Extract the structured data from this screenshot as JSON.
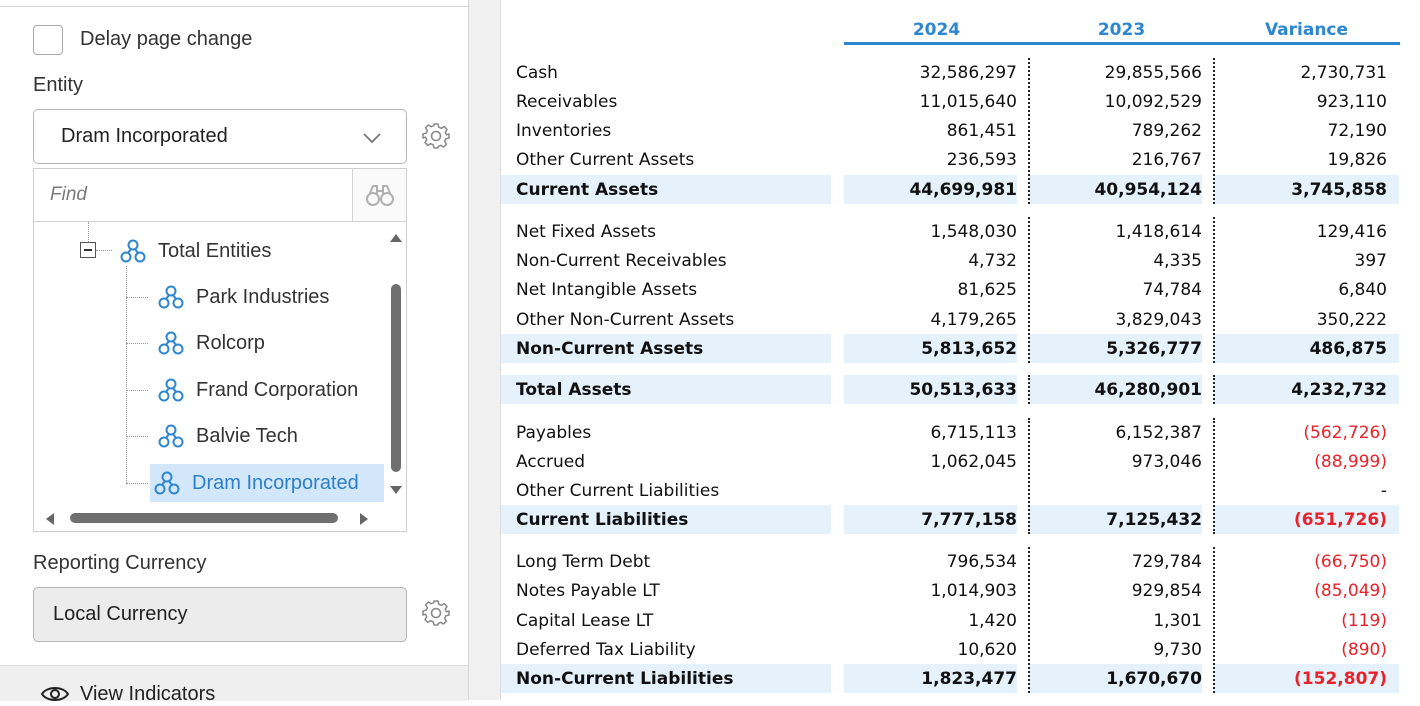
{
  "left_panel": {
    "delay_label": "Delay page change",
    "entity_label": "Entity",
    "entity_value": "Dram Incorporated",
    "find_placeholder": "Find",
    "tree": {
      "root": "Total Entities",
      "children": [
        "Park Industries",
        "Rolcorp",
        "Frand Corporation",
        "Balvie Tech",
        "Dram Incorporated"
      ],
      "selected": "Dram Incorporated"
    },
    "currency_label": "Reporting Currency",
    "currency_value": "Local Currency",
    "view_indicators_label": "View Indicators"
  },
  "report": {
    "headers": [
      "2024",
      "2023",
      "Variance"
    ],
    "accent_color": "#2e86d0",
    "negative_color": "#e8222a",
    "subtotal_bg": "#e5f1fb",
    "rows": [
      {
        "label": "Cash",
        "v2024": "32,586,297",
        "v2023": "29,855,566",
        "var": "2,730,731",
        "neg": false,
        "sub": false
      },
      {
        "label": "Receivables",
        "v2024": "11,015,640",
        "v2023": "10,092,529",
        "var": "923,110",
        "neg": false,
        "sub": false
      },
      {
        "label": "Inventories",
        "v2024": "861,451",
        "v2023": "789,262",
        "var": "72,190",
        "neg": false,
        "sub": false
      },
      {
        "label": "Other Current Assets",
        "v2024": "236,593",
        "v2023": "216,767",
        "var": "19,826",
        "neg": false,
        "sub": false
      },
      {
        "label": "Current Assets",
        "v2024": "44,699,981",
        "v2023": "40,954,124",
        "var": "3,745,858",
        "neg": false,
        "sub": true
      },
      {
        "label": "Net Fixed Assets",
        "v2024": "1,548,030",
        "v2023": "1,418,614",
        "var": "129,416",
        "neg": false,
        "sub": false
      },
      {
        "label": "Non-Current Receivables",
        "v2024": "4,732",
        "v2023": "4,335",
        "var": "397",
        "neg": false,
        "sub": false
      },
      {
        "label": "Net Intangible Assets",
        "v2024": "81,625",
        "v2023": "74,784",
        "var": "6,840",
        "neg": false,
        "sub": false
      },
      {
        "label": "Other Non-Current Assets",
        "v2024": "4,179,265",
        "v2023": "3,829,043",
        "var": "350,222",
        "neg": false,
        "sub": false
      },
      {
        "label": "Non-Current Assets",
        "v2024": "5,813,652",
        "v2023": "5,326,777",
        "var": "486,875",
        "neg": false,
        "sub": true
      },
      {
        "label": "Total Assets",
        "v2024": "50,513,633",
        "v2023": "46,280,901",
        "var": "4,232,732",
        "neg": false,
        "sub": true
      },
      {
        "label": "Payables",
        "v2024": "6,715,113",
        "v2023": "6,152,387",
        "var": "(562,726)",
        "neg": true,
        "sub": false
      },
      {
        "label": "Accrued",
        "v2024": "1,062,045",
        "v2023": "973,046",
        "var": "(88,999)",
        "neg": true,
        "sub": false
      },
      {
        "label": "Other Current Liabilities",
        "v2024": "",
        "v2023": "",
        "var": "-",
        "neg": false,
        "sub": false
      },
      {
        "label": "Current Liabilities",
        "v2024": "7,777,158",
        "v2023": "7,125,432",
        "var": "(651,726)",
        "neg": true,
        "sub": true
      },
      {
        "label": "Long Term Debt",
        "v2024": "796,534",
        "v2023": "729,784",
        "var": "(66,750)",
        "neg": true,
        "sub": false
      },
      {
        "label": "Notes Payable LT",
        "v2024": "1,014,903",
        "v2023": "929,854",
        "var": "(85,049)",
        "neg": true,
        "sub": false
      },
      {
        "label": "Capital Lease LT",
        "v2024": "1,420",
        "v2023": "1,301",
        "var": "(119)",
        "neg": true,
        "sub": false
      },
      {
        "label": "Deferred Tax Liability",
        "v2024": "10,620",
        "v2023": "9,730",
        "var": "(890)",
        "neg": true,
        "sub": false
      },
      {
        "label": "Non-Current Liabilities",
        "v2024": "1,823,477",
        "v2023": "1,670,670",
        "var": "(152,807)",
        "neg": true,
        "sub": true
      }
    ]
  }
}
